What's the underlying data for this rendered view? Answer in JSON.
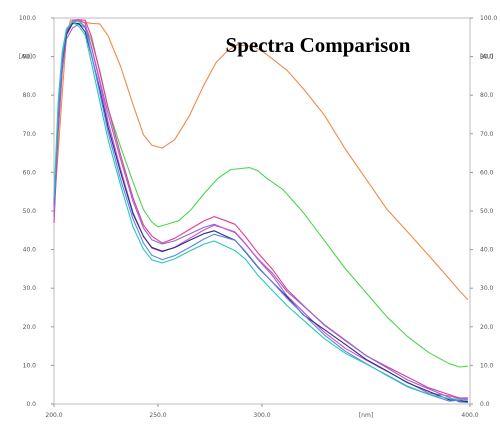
{
  "chart_data": {
    "type": "line",
    "title": "Spectra Comparison",
    "xlabel": "",
    "ylabel": "",
    "xlim": [
      200,
      400
    ],
    "ylim": [
      0,
      100
    ],
    "x_ticks": [
      "200.0",
      "250.0",
      "300.0",
      "400.0"
    ],
    "x_unit_label": "[nm]",
    "y_ticks_left": [
      "0.0",
      "10.0",
      "20.0",
      "30.0",
      "40.0",
      "50.0",
      "60.0",
      "70.0",
      "80.0",
      "90.0",
      "100.0"
    ],
    "y_ticks_right": [
      "0.0",
      "10.0",
      "20.0",
      "30.0",
      "40.0",
      "50.0",
      "60.0",
      "70.0",
      "80.0",
      "90.0",
      "100.0"
    ],
    "y_unit_label_left": "[AU]",
    "y_unit_label_right": "[AU]",
    "grid": false,
    "series": [
      {
        "color": "#f08a4b",
        "x": [
          200,
          202,
          204,
          206,
          208,
          210,
          212,
          215,
          218,
          222,
          226,
          232,
          238,
          243,
          247,
          252,
          258,
          265,
          272,
          278,
          283,
          288,
          292,
          296,
          300,
          305,
          312,
          320,
          330,
          340,
          350,
          360,
          370,
          380,
          390,
          395,
          399
        ],
        "y": [
          50,
          65,
          80,
          95,
          99,
          99,
          99,
          99,
          99,
          99,
          96,
          88,
          78,
          70,
          67,
          66,
          68,
          74,
          82,
          88,
          91,
          93,
          93,
          93,
          92,
          90,
          87,
          82,
          75,
          66,
          58,
          50,
          44,
          38,
          32,
          29,
          27
        ]
      },
      {
        "color": "#4cd64c",
        "x": [
          200,
          202,
          204,
          206,
          208,
          210,
          212,
          215,
          218,
          222,
          226,
          232,
          238,
          243,
          247,
          250,
          255,
          260,
          266,
          272,
          279,
          285,
          290,
          294,
          298,
          302,
          310,
          320,
          330,
          340,
          350,
          360,
          370,
          380,
          390,
          395,
          399
        ],
        "y": [
          49,
          72,
          88,
          96,
          99,
          99,
          99,
          98,
          94,
          86,
          76,
          66,
          57,
          50,
          47,
          46,
          47,
          48,
          51,
          55,
          59,
          61,
          61,
          61,
          60,
          58,
          55,
          49,
          42,
          35,
          29,
          23,
          18,
          14,
          11,
          10,
          10
        ]
      },
      {
        "color": "#e83a8f",
        "x": [
          200,
          202,
          204,
          206,
          209,
          212,
          215,
          218,
          222,
          226,
          232,
          238,
          243,
          247,
          252,
          258,
          265,
          272,
          277,
          282,
          287,
          292,
          298,
          305,
          312,
          320,
          330,
          340,
          350,
          360,
          370,
          380,
          390,
          395,
          399
        ],
        "y": [
          47,
          70,
          86,
          95,
          98,
          99,
          99,
          95,
          86,
          77,
          65,
          54,
          47,
          44,
          42,
          43,
          45,
          47,
          48,
          47,
          46,
          43,
          39,
          35,
          30,
          26,
          21,
          17,
          13,
          10,
          7,
          4,
          2,
          1,
          1
        ]
      },
      {
        "color": "#8a6bd1",
        "x": [
          200,
          202,
          204,
          206,
          209,
          212,
          215,
          218,
          222,
          226,
          232,
          238,
          243,
          247,
          252,
          258,
          265,
          272,
          277,
          282,
          287,
          292,
          298,
          305,
          312,
          320,
          330,
          340,
          350,
          360,
          370,
          380,
          390,
          395,
          399
        ],
        "y": [
          48,
          72,
          87,
          95,
          98,
          99,
          98,
          93,
          84,
          75,
          63,
          52,
          45,
          42,
          41,
          42,
          44,
          46,
          47,
          46,
          45,
          42,
          38,
          34,
          29,
          25,
          20,
          16,
          12,
          9,
          6,
          4,
          2,
          1,
          1
        ]
      },
      {
        "color": "#cf4fd6",
        "x": [
          200,
          202,
          204,
          206,
          209,
          212,
          215,
          218,
          222,
          226,
          232,
          238,
          243,
          247,
          252,
          258,
          265,
          272,
          277,
          282,
          287,
          292,
          298,
          305,
          312,
          320,
          330,
          340,
          350,
          360,
          370,
          380,
          390,
          395,
          399
        ],
        "y": [
          50,
          74,
          88,
          96,
          99,
          99,
          98,
          92,
          83,
          73,
          61,
          50,
          44,
          41,
          40,
          41,
          43,
          45,
          46,
          45,
          44,
          41,
          37,
          33,
          28,
          24,
          19,
          15,
          12,
          9,
          6,
          3,
          2,
          1,
          1
        ]
      },
      {
        "color": "#2b2b8a",
        "x": [
          200,
          202,
          204,
          206,
          209,
          212,
          215,
          218,
          222,
          226,
          232,
          238,
          243,
          247,
          252,
          258,
          265,
          272,
          277,
          282,
          287,
          292,
          298,
          305,
          312,
          320,
          330,
          340,
          350,
          360,
          370,
          380,
          390,
          395,
          399
        ],
        "y": [
          51,
          75,
          89,
          96,
          99,
          99,
          97,
          91,
          82,
          72,
          60,
          49,
          43,
          40,
          39,
          40,
          42,
          44,
          45,
          44,
          43,
          40,
          36,
          32,
          28,
          23,
          19,
          15,
          11,
          8,
          5,
          3,
          1,
          1,
          1
        ]
      },
      {
        "color": "#5a86e6",
        "x": [
          200,
          202,
          204,
          206,
          209,
          212,
          215,
          218,
          222,
          226,
          232,
          238,
          243,
          247,
          252,
          258,
          265,
          272,
          277,
          282,
          287,
          292,
          298,
          305,
          312,
          320,
          330,
          340,
          350,
          360,
          370,
          380,
          390,
          395,
          399
        ],
        "y": [
          52,
          76,
          90,
          97,
          99,
          99,
          97,
          90,
          80,
          70,
          58,
          48,
          42,
          39,
          38,
          39,
          41,
          43,
          44,
          43,
          42,
          39,
          35,
          31,
          27,
          23,
          18,
          14,
          11,
          8,
          5,
          3,
          1,
          1,
          1
        ]
      },
      {
        "color": "#27c9b8",
        "x": [
          200,
          202,
          204,
          206,
          209,
          212,
          215,
          218,
          222,
          226,
          232,
          238,
          243,
          247,
          252,
          258,
          265,
          272,
          277,
          282,
          287,
          292,
          298,
          305,
          312,
          320,
          330,
          340,
          350,
          360,
          370,
          380,
          390,
          395,
          399
        ],
        "y": [
          53,
          78,
          91,
          97,
          99,
          98,
          96,
          89,
          79,
          69,
          57,
          46,
          40,
          37,
          36,
          37,
          39,
          41,
          42,
          41,
          40,
          38,
          34,
          30,
          26,
          22,
          17,
          13,
          10,
          7,
          4,
          2,
          1,
          1,
          1
        ]
      }
    ]
  }
}
